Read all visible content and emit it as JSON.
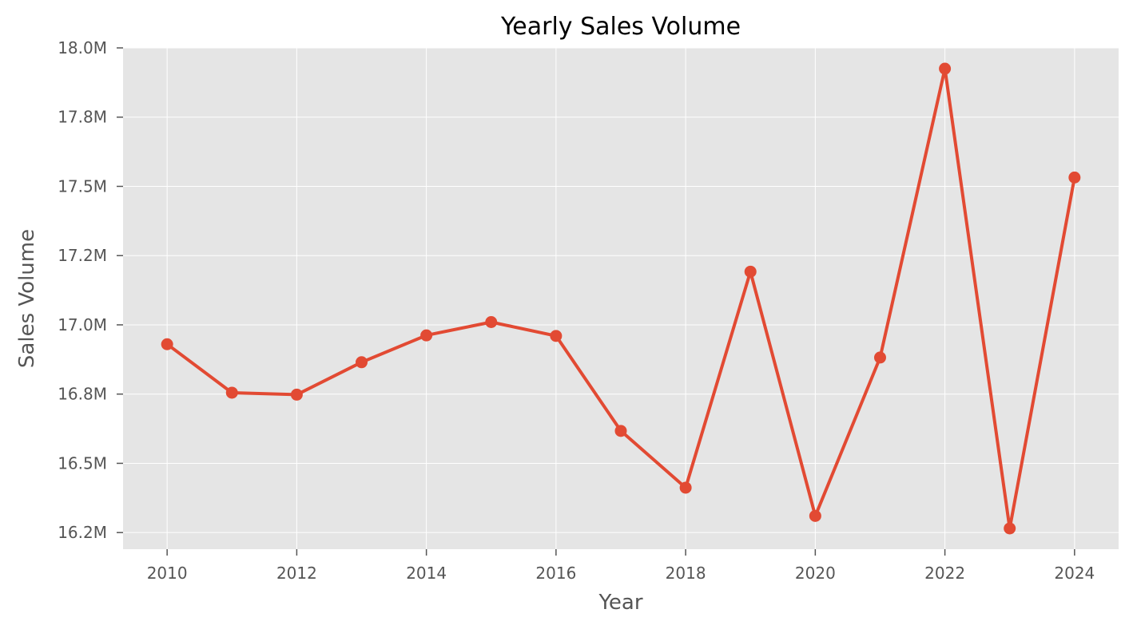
{
  "chart_data": {
    "type": "line",
    "title": "Yearly Sales Volume",
    "xlabel": "Year",
    "ylabel": "Sales Volume",
    "x": [
      2010,
      2011,
      2012,
      2013,
      2014,
      2015,
      2016,
      2017,
      2018,
      2019,
      2020,
      2021,
      2022,
      2023,
      2024
    ],
    "series": [
      {
        "values": [
          16930000,
          16755000,
          16748000,
          16865000,
          16962000,
          17010000,
          16960000,
          16617000,
          16412000,
          17192000,
          16310000,
          16882000,
          17925000,
          16265000,
          17532000
        ],
        "color": "#e24a33"
      }
    ],
    "xticks": [
      2010,
      2012,
      2014,
      2016,
      2018,
      2020,
      2022,
      2024
    ],
    "xtick_labels": [
      "2010",
      "2012",
      "2014",
      "2016",
      "2018",
      "2020",
      "2022",
      "2024"
    ],
    "yticks": [
      16250000,
      16500000,
      16750000,
      17000000,
      17250000,
      17500000,
      17750000,
      18000000
    ],
    "ytick_labels": [
      "16.2M",
      "16.5M",
      "16.8M",
      "17.0M",
      "17.2M",
      "17.5M",
      "17.8M",
      "18.0M"
    ],
    "xlim": [
      2009.32,
      2024.68
    ],
    "ylim": [
      16190000,
      18000000
    ],
    "grid": true,
    "legend": "none",
    "plot_background": "#e5e5e5",
    "grid_color": "#ffffff"
  }
}
